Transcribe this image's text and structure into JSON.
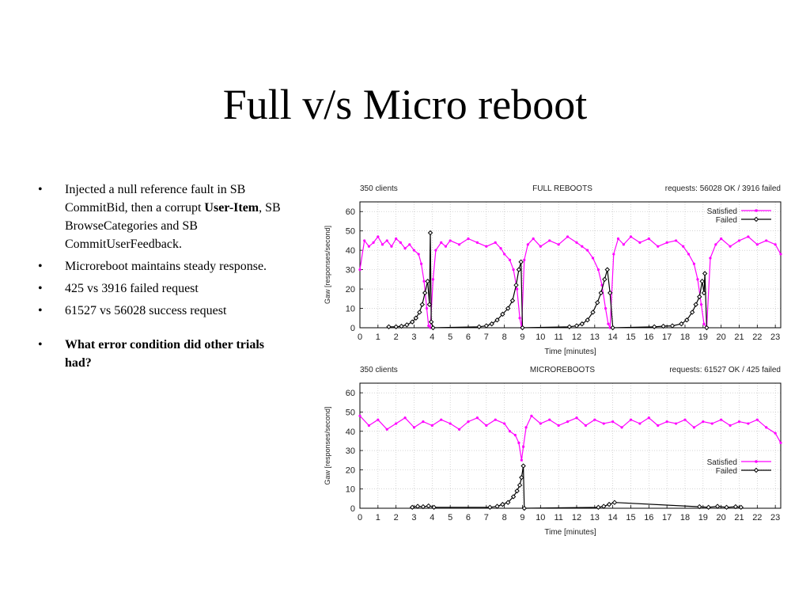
{
  "slide": {
    "title": "Full v/s  Micro reboot",
    "bullets": [
      {
        "pre": "Injected a null reference fault in SB CommitBid, then a corrupt ",
        "bold": "User-Item",
        "post": ", SB BrowseCategories and SB CommitUserFeedback."
      },
      {
        "pre": "Microreboot maintains steady response.",
        "bold": "",
        "post": ""
      },
      {
        "pre": "425 vs 3916 failed request",
        "bold": "",
        "post": ""
      },
      {
        "pre": "61527 vs 56028 success request",
        "bold": "",
        "post": ""
      },
      {
        "pre": "",
        "bold": "What error condition did other trials had?",
        "post": ""
      }
    ]
  },
  "colors": {
    "satisfied": "#ff00ff",
    "failed": "#000000",
    "frame": "#000000",
    "grid": "#bbbbbb"
  },
  "chart_data": [
    {
      "type": "line",
      "header_left": "350 clients",
      "title": "FULL REBOOTS",
      "header_right": "requests: 56028 OK / 3916 failed",
      "xlabel": "Time [minutes]",
      "ylabel": "Gaw [responses/second]",
      "xlim": [
        0,
        23.3
      ],
      "ylim": [
        0,
        65
      ],
      "xticks": [
        0,
        1,
        2,
        3,
        4,
        5,
        6,
        7,
        8,
        9,
        10,
        11,
        12,
        13,
        14,
        15,
        16,
        17,
        18,
        19,
        20,
        21,
        22,
        23
      ],
      "yticks": [
        0,
        10,
        20,
        30,
        40,
        50,
        60
      ],
      "grid": true,
      "legend": "top-right",
      "series": [
        {
          "name": "Satisfied",
          "color_key": "satisfied",
          "values": [
            [
              0,
              30
            ],
            [
              0.25,
              45
            ],
            [
              0.5,
              42
            ],
            [
              0.75,
              44
            ],
            [
              1,
              47
            ],
            [
              1.25,
              43
            ],
            [
              1.5,
              45
            ],
            [
              1.75,
              42
            ],
            [
              2,
              46
            ],
            [
              2.25,
              44
            ],
            [
              2.5,
              41
            ],
            [
              2.75,
              43
            ],
            [
              3,
              40
            ],
            [
              3.25,
              38
            ],
            [
              3.4,
              33
            ],
            [
              3.55,
              24
            ],
            [
              3.7,
              10
            ],
            [
              3.8,
              1
            ],
            [
              3.9,
              0
            ],
            [
              4.05,
              25
            ],
            [
              4.2,
              40
            ],
            [
              4.5,
              44
            ],
            [
              4.75,
              42
            ],
            [
              5,
              45
            ],
            [
              5.5,
              43
            ],
            [
              6,
              46
            ],
            [
              6.5,
              44
            ],
            [
              7,
              42
            ],
            [
              7.5,
              44
            ],
            [
              7.8,
              41
            ],
            [
              8,
              38
            ],
            [
              8.3,
              35
            ],
            [
              8.5,
              30
            ],
            [
              8.7,
              20
            ],
            [
              8.85,
              5
            ],
            [
              8.95,
              0
            ],
            [
              9.1,
              35
            ],
            [
              9.3,
              43
            ],
            [
              9.6,
              46
            ],
            [
              10,
              42
            ],
            [
              10.5,
              45
            ],
            [
              11,
              43
            ],
            [
              11.5,
              47
            ],
            [
              12,
              44
            ],
            [
              12.3,
              42
            ],
            [
              12.6,
              40
            ],
            [
              12.9,
              36
            ],
            [
              13.2,
              30
            ],
            [
              13.4,
              22
            ],
            [
              13.6,
              10
            ],
            [
              13.75,
              2
            ],
            [
              13.85,
              0
            ],
            [
              14.05,
              38
            ],
            [
              14.3,
              46
            ],
            [
              14.6,
              43
            ],
            [
              15,
              47
            ],
            [
              15.5,
              44
            ],
            [
              16,
              46
            ],
            [
              16.5,
              42
            ],
            [
              17,
              44
            ],
            [
              17.5,
              45
            ],
            [
              17.9,
              42
            ],
            [
              18.2,
              38
            ],
            [
              18.5,
              33
            ],
            [
              18.7,
              25
            ],
            [
              18.9,
              12
            ],
            [
              19.05,
              2
            ],
            [
              19.2,
              0
            ],
            [
              19.4,
              36
            ],
            [
              19.7,
              43
            ],
            [
              20,
              46
            ],
            [
              20.5,
              42
            ],
            [
              21,
              45
            ],
            [
              21.5,
              47
            ],
            [
              22,
              43
            ],
            [
              22.5,
              45
            ],
            [
              23,
              43
            ],
            [
              23.3,
              38
            ]
          ]
        },
        {
          "name": "Failed",
          "color_key": "failed",
          "values": [
            [
              1.6,
              0.5
            ],
            [
              2,
              0.5
            ],
            [
              2.3,
              0.8
            ],
            [
              2.6,
              1.5
            ],
            [
              2.9,
              3
            ],
            [
              3.1,
              5
            ],
            [
              3.3,
              8
            ],
            [
              3.45,
              12
            ],
            [
              3.6,
              18
            ],
            [
              3.75,
              24
            ],
            [
              3.85,
              12
            ],
            [
              3.9,
              49
            ],
            [
              3.95,
              3
            ],
            [
              4.05,
              0
            ],
            [
              6.6,
              0.5
            ],
            [
              7,
              1
            ],
            [
              7.3,
              2
            ],
            [
              7.6,
              4
            ],
            [
              7.9,
              7
            ],
            [
              8.2,
              10
            ],
            [
              8.45,
              14
            ],
            [
              8.65,
              22
            ],
            [
              8.8,
              30
            ],
            [
              8.92,
              34
            ],
            [
              9.0,
              0
            ],
            [
              11.6,
              0.5
            ],
            [
              12,
              1
            ],
            [
              12.3,
              2
            ],
            [
              12.6,
              4
            ],
            [
              12.9,
              8
            ],
            [
              13.15,
              13
            ],
            [
              13.35,
              18
            ],
            [
              13.55,
              25
            ],
            [
              13.7,
              30
            ],
            [
              13.85,
              18
            ],
            [
              14.0,
              0
            ],
            [
              16.3,
              0.5
            ],
            [
              16.8,
              0.8
            ],
            [
              17.3,
              1
            ],
            [
              17.8,
              2
            ],
            [
              18.1,
              4
            ],
            [
              18.4,
              8
            ],
            [
              18.6,
              12
            ],
            [
              18.8,
              16
            ],
            [
              18.95,
              24
            ],
            [
              19.05,
              18
            ],
            [
              19.1,
              28
            ],
            [
              19.2,
              0
            ]
          ]
        }
      ]
    },
    {
      "type": "line",
      "header_left": "350 clients",
      "title": "MICROREBOOTS",
      "header_right": "requests: 61527 OK / 425 failed",
      "xlabel": "Time [minutes]",
      "ylabel": "Gaw [responses/second]",
      "xlim": [
        0,
        23.3
      ],
      "ylim": [
        0,
        65
      ],
      "xticks": [
        0,
        1,
        2,
        3,
        4,
        5,
        6,
        7,
        8,
        9,
        10,
        11,
        12,
        13,
        14,
        15,
        16,
        17,
        18,
        19,
        20,
        21,
        22,
        23
      ],
      "yticks": [
        0,
        10,
        20,
        30,
        40,
        50,
        60
      ],
      "grid": true,
      "legend": "middle-right",
      "series": [
        {
          "name": "Satisfied",
          "color_key": "satisfied",
          "values": [
            [
              0,
              48
            ],
            [
              0.5,
              43
            ],
            [
              1,
              46
            ],
            [
              1.5,
              41
            ],
            [
              2,
              44
            ],
            [
              2.5,
              47
            ],
            [
              3,
              42
            ],
            [
              3.5,
              45
            ],
            [
              4,
              43
            ],
            [
              4.5,
              46
            ],
            [
              5,
              44
            ],
            [
              5.5,
              41
            ],
            [
              6,
              45
            ],
            [
              6.5,
              47
            ],
            [
              7,
              43
            ],
            [
              7.5,
              46
            ],
            [
              8,
              44
            ],
            [
              8.3,
              40
            ],
            [
              8.6,
              38
            ],
            [
              8.8,
              34
            ],
            [
              8.95,
              25
            ],
            [
              9.05,
              32
            ],
            [
              9.2,
              42
            ],
            [
              9.5,
              48
            ],
            [
              10,
              44
            ],
            [
              10.5,
              46
            ],
            [
              11,
              43
            ],
            [
              11.5,
              45
            ],
            [
              12,
              47
            ],
            [
              12.5,
              43
            ],
            [
              13,
              46
            ],
            [
              13.5,
              44
            ],
            [
              14,
              45
            ],
            [
              14.5,
              42
            ],
            [
              15,
              46
            ],
            [
              15.5,
              44
            ],
            [
              16,
              47
            ],
            [
              16.5,
              43
            ],
            [
              17,
              45
            ],
            [
              17.5,
              44
            ],
            [
              18,
              46
            ],
            [
              18.5,
              42
            ],
            [
              19,
              45
            ],
            [
              19.5,
              44
            ],
            [
              20,
              46
            ],
            [
              20.5,
              43
            ],
            [
              21,
              45
            ],
            [
              21.5,
              44
            ],
            [
              22,
              46
            ],
            [
              22.5,
              42
            ],
            [
              23,
              39
            ],
            [
              23.3,
              34
            ]
          ]
        },
        {
          "name": "Failed",
          "color_key": "failed",
          "values": [
            [
              2.9,
              0.5
            ],
            [
              3.2,
              1
            ],
            [
              3.5,
              0.8
            ],
            [
              3.8,
              1.2
            ],
            [
              4.1,
              0.5
            ],
            [
              7.2,
              0.5
            ],
            [
              7.6,
              1
            ],
            [
              7.9,
              2
            ],
            [
              8.2,
              3
            ],
            [
              8.5,
              6
            ],
            [
              8.7,
              9
            ],
            [
              8.85,
              12
            ],
            [
              8.95,
              16
            ],
            [
              9.05,
              22
            ],
            [
              9.1,
              0
            ],
            [
              13.2,
              0.5
            ],
            [
              13.5,
              1
            ],
            [
              13.8,
              2
            ],
            [
              14.1,
              3
            ],
            [
              18.8,
              0.8
            ],
            [
              19.3,
              0.5
            ],
            [
              19.8,
              1
            ],
            [
              20.3,
              0.5
            ],
            [
              20.8,
              0.8
            ],
            [
              21.1,
              0.5
            ]
          ]
        }
      ]
    }
  ],
  "layout_note_free": true
}
